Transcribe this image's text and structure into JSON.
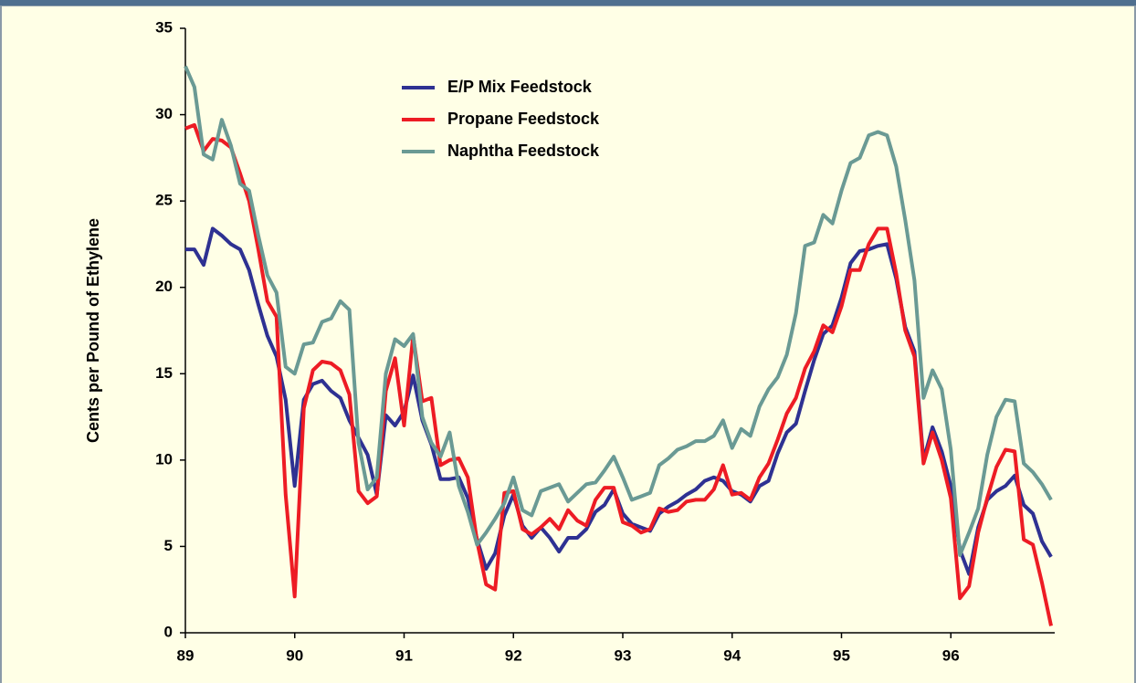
{
  "chart_data": {
    "type": "line",
    "y_label": "Cents per Pound of Ethylene",
    "x": [
      89,
      89.083,
      89.167,
      89.25,
      89.333,
      89.417,
      89.5,
      89.583,
      89.667,
      89.75,
      89.833,
      89.917,
      90,
      90.083,
      90.167,
      90.25,
      90.333,
      90.417,
      90.5,
      90.583,
      90.667,
      90.75,
      90.833,
      90.917,
      91,
      91.083,
      91.167,
      91.25,
      91.333,
      91.417,
      91.5,
      91.583,
      91.667,
      91.75,
      91.833,
      91.917,
      92,
      92.083,
      92.167,
      92.25,
      92.333,
      92.417,
      92.5,
      92.583,
      92.667,
      92.75,
      92.833,
      92.917,
      93,
      93.083,
      93.167,
      93.25,
      93.333,
      93.417,
      93.5,
      93.583,
      93.667,
      93.75,
      93.833,
      93.917,
      94,
      94.083,
      94.167,
      94.25,
      94.333,
      94.417,
      94.5,
      94.583,
      94.667,
      94.75,
      94.833,
      94.917,
      95,
      95.083,
      95.167,
      95.25,
      95.333,
      95.417,
      95.5,
      95.583,
      95.667,
      95.75,
      95.833,
      95.917,
      96,
      96.083,
      96.167,
      96.25,
      96.333,
      96.417,
      96.5,
      96.583,
      96.667,
      96.75,
      96.833,
      96.917
    ],
    "series": [
      {
        "name": "E/P Mix Feedstock",
        "color": "#2e3192",
        "values": [
          22.2,
          22.2,
          21.3,
          23.4,
          23,
          22.5,
          22.2,
          21,
          19,
          17.2,
          16,
          13.5,
          8.5,
          13.5,
          14.4,
          14.6,
          14,
          13.6,
          12.3,
          11.3,
          10.3,
          8,
          12.6,
          12,
          12.8,
          14.9,
          12.3,
          10.9,
          8.9,
          8.9,
          9,
          7.8,
          5.4,
          3.7,
          4.6,
          6.8,
          8,
          6.2,
          5.5,
          6.1,
          5.5,
          4.7,
          5.5,
          5.5,
          6,
          7,
          7.4,
          8.3,
          6.9,
          6.3,
          6.1,
          5.9,
          6.9,
          7.3,
          7.6,
          8,
          8.3,
          8.8,
          9,
          8.8,
          8.2,
          8,
          7.6,
          8.5,
          8.8,
          10.4,
          11.6,
          12.1,
          14,
          15.8,
          17.3,
          17.8,
          19.4,
          21.4,
          22.1,
          22.2,
          22.4,
          22.5,
          20.5,
          17.7,
          16.3,
          10,
          11.9,
          10.5,
          8.5,
          4.8,
          3.4,
          6.1,
          7.7,
          8.2,
          8.5,
          9.1,
          7.4,
          6.9,
          5.3,
          4.4
        ]
      },
      {
        "name": "Propane Feedstock",
        "color": "#ed1c24",
        "values": [
          29.2,
          29.4,
          27.9,
          28.6,
          28.5,
          28.1,
          26.6,
          25,
          22.2,
          19.2,
          18.3,
          8,
          2.1,
          13,
          15.2,
          15.7,
          15.6,
          15.2,
          13.8,
          8.2,
          7.5,
          7.9,
          14,
          15.9,
          12,
          17.2,
          13.4,
          13.6,
          9.7,
          10,
          10.1,
          9,
          5.3,
          2.8,
          2.5,
          8.1,
          8.2,
          6,
          5.7,
          6.1,
          6.6,
          6,
          7.1,
          6.5,
          6.2,
          7.7,
          8.4,
          8.4,
          6.4,
          6.2,
          5.8,
          6,
          7.2,
          7,
          7.1,
          7.6,
          7.7,
          7.7,
          8.3,
          9.7,
          8,
          8.1,
          7.7,
          9,
          9.8,
          11.2,
          12.7,
          13.6,
          15.3,
          16.3,
          17.8,
          17.4,
          18.9,
          21,
          21,
          22.5,
          23.4,
          23.4,
          20.8,
          17.5,
          16,
          9.8,
          11.6,
          10,
          7.8,
          2,
          2.7,
          5.8,
          7.8,
          9.6,
          10.6,
          10.5,
          5.4,
          5.1,
          2.9,
          0.4
        ]
      },
      {
        "name": "Naphtha Feedstock",
        "color": "#6a9a94",
        "values": [
          32.8,
          31.6,
          27.7,
          27.4,
          29.7,
          28.2,
          26,
          25.6,
          23,
          20.7,
          19.7,
          15.4,
          15,
          16.7,
          16.8,
          18,
          18.2,
          19.2,
          18.7,
          11,
          8.3,
          9,
          15,
          17,
          16.6,
          17.3,
          12.5,
          11,
          10.2,
          11.6,
          8.5,
          7,
          5.1,
          5.8,
          6.6,
          7.5,
          9,
          7.1,
          6.8,
          8.2,
          8.4,
          8.6,
          7.6,
          8.1,
          8.6,
          8.7,
          9.4,
          10.2,
          9,
          7.7,
          7.9,
          8.1,
          9.7,
          10.1,
          10.6,
          10.8,
          11.1,
          11.1,
          11.4,
          12.3,
          10.7,
          11.8,
          11.4,
          13.1,
          14.1,
          14.8,
          16.1,
          18.5,
          22.4,
          22.6,
          24.2,
          23.7,
          25.6,
          27.2,
          27.5,
          28.8,
          29,
          28.8,
          27,
          23.9,
          20.4,
          13.6,
          15.2,
          14.1,
          10.6,
          4.5,
          5.8,
          7.2,
          10.3,
          12.5,
          13.5,
          13.4,
          9.8,
          9.3,
          8.6,
          7.7
        ]
      }
    ],
    "xlim": [
      89,
      96.95
    ],
    "xticks": [
      89,
      90,
      91,
      92,
      93,
      94,
      95,
      96
    ],
    "ylim": [
      0,
      35
    ],
    "yticks": [
      0,
      5,
      10,
      15,
      20,
      25,
      30,
      35
    ],
    "grid": false
  }
}
